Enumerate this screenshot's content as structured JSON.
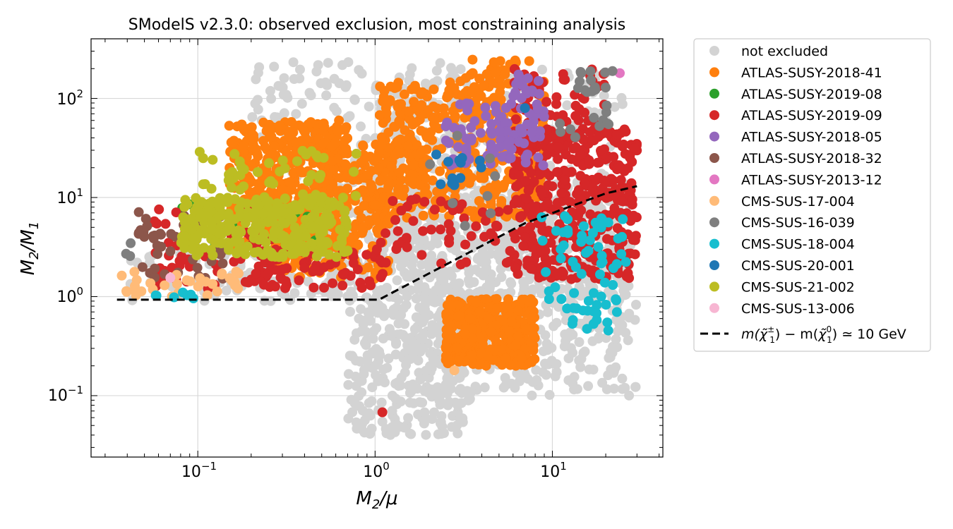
{
  "chart_data": {
    "type": "scatter",
    "title": "SModelS v2.3.0: observed exclusion, most constraining analysis",
    "xlabel": {
      "base": "M",
      "sub": "2",
      "tail": "/μ"
    },
    "ylabel": {
      "base": "M",
      "sub": "2",
      "tail": "/M",
      "sub2": "1"
    },
    "xscale": "log",
    "yscale": "log",
    "xlim": [
      0.025,
      42
    ],
    "ylim": [
      0.024,
      400
    ],
    "grid": true,
    "legend_position": "outside-right",
    "x_ticks": [
      {
        "value": 0.1,
        "base": "10",
        "exp": "−1"
      },
      {
        "value": 1,
        "base": "10",
        "exp": "0"
      },
      {
        "value": 10,
        "base": "10",
        "exp": "1"
      }
    ],
    "y_ticks": [
      {
        "value": 0.1,
        "base": "10",
        "exp": "−1"
      },
      {
        "value": 1,
        "base": "10",
        "exp": "0"
      },
      {
        "value": 10,
        "base": "10",
        "exp": "1"
      },
      {
        "value": 100,
        "base": "10",
        "exp": "2"
      }
    ],
    "series": [
      {
        "name": "not excluded",
        "color": "#d3d3d3",
        "regions": [
          {
            "x": [
              0.04,
              1.0
            ],
            "y": [
              0.9,
              3.0
            ],
            "n": 90
          },
          {
            "x": [
              0.5,
              28
            ],
            "y": [
              1.0,
              14
            ],
            "n": 500
          },
          {
            "x": [
              0.7,
              3.5
            ],
            "y": [
              0.04,
              1.0
            ],
            "n": 300
          },
          {
            "x": [
              1.0,
              25
            ],
            "y": [
              0.3,
              200
            ],
            "n": 400
          },
          {
            "x": [
              0.2,
              3.5
            ],
            "y": [
              12,
              240
            ],
            "n": 160
          },
          {
            "x": [
              2.0,
              30
            ],
            "y": [
              0.1,
              1.2
            ],
            "n": 200
          }
        ]
      },
      {
        "name": "ATLAS-SUSY-2018-41",
        "color": "#ff7f0e",
        "regions": [
          {
            "x": [
              0.15,
              0.7
            ],
            "y": [
              3.0,
              60
            ],
            "n": 450
          },
          {
            "x": [
              0.25,
              1.2
            ],
            "y": [
              1.5,
              12
            ],
            "n": 200
          },
          {
            "x": [
              1.0,
              9.0
            ],
            "y": [
              6,
              150
            ],
            "n": 400
          },
          {
            "x": [
              0.5,
              2.0
            ],
            "y": [
              8,
              40
            ],
            "n": 120
          },
          {
            "x": [
              2.5,
              8.0
            ],
            "y": [
              0.2,
              0.95
            ],
            "n": 380
          },
          {
            "x": [
              3.0,
              7.5
            ],
            "y": [
              100,
              250
            ],
            "n": 30
          }
        ]
      },
      {
        "name": "ATLAS-SUSY-2019-08",
        "color": "#2ca02c",
        "regions": [
          {
            "x": [
              0.075,
              0.18
            ],
            "y": [
              3.0,
              9.0
            ],
            "n": 12
          },
          {
            "x": [
              0.3,
              0.7
            ],
            "y": [
              3.0,
              8.0
            ],
            "n": 6
          }
        ]
      },
      {
        "name": "ATLAS-SUSY-2019-09",
        "color": "#d62728",
        "regions": [
          {
            "x": [
              0.055,
              0.3
            ],
            "y": [
              1.2,
              8.0
            ],
            "n": 70
          },
          {
            "x": [
              0.2,
              1.2
            ],
            "y": [
              1.2,
              3.0
            ],
            "n": 70
          },
          {
            "x": [
              6.0,
              30
            ],
            "y": [
              1.5,
              50
            ],
            "n": 400
          },
          {
            "x": [
              6.0,
              20
            ],
            "y": [
              30,
              200
            ],
            "n": 80
          },
          {
            "x": [
              1.0,
              8.0
            ],
            "y": [
              2.0,
              10
            ],
            "n": 60
          },
          {
            "x": [
              1.1,
              1.1
            ],
            "y": [
              0.068,
              0.068
            ],
            "n": 1
          }
        ]
      },
      {
        "name": "ATLAS-SUSY-2018-05",
        "color": "#9467bd",
        "regions": [
          {
            "x": [
              2.5,
              9.0
            ],
            "y": [
              20,
              90
            ],
            "n": 90
          },
          {
            "x": [
              5.5,
              8.5
            ],
            "y": [
              100,
              180
            ],
            "n": 15
          }
        ]
      },
      {
        "name": "ATLAS-SUSY-2018-32",
        "color": "#8c564b",
        "regions": [
          {
            "x": [
              0.045,
              0.15
            ],
            "y": [
              1.5,
              8.0
            ],
            "n": 50
          }
        ]
      },
      {
        "name": "ATLAS-SUSY-2013-12",
        "color": "#e377c2",
        "regions": [
          {
            "x": [
              24,
              24
            ],
            "y": [
              180,
              180
            ],
            "n": 1
          }
        ]
      },
      {
        "name": "CMS-SUS-17-004",
        "color": "#ffbb78",
        "regions": [
          {
            "x": [
              0.035,
              0.17
            ],
            "y": [
              1.0,
              1.8
            ],
            "n": 35
          },
          {
            "x": [
              2.8,
              2.8
            ],
            "y": [
              0.18,
              0.18
            ],
            "n": 1
          }
        ]
      },
      {
        "name": "CMS-SUS-16-039",
        "color": "#7f7f7f",
        "regions": [
          {
            "x": [
              10,
              22
            ],
            "y": [
              40,
              200
            ],
            "n": 25
          },
          {
            "x": [
              0.038,
              0.045
            ],
            "y": [
              2.5,
              3.5
            ],
            "n": 3
          },
          {
            "x": [
              2.0,
              6.0
            ],
            "y": [
              5.0,
              70
            ],
            "n": 8
          }
        ]
      },
      {
        "name": "CMS-SUS-18-004",
        "color": "#17becf",
        "regions": [
          {
            "x": [
              0.05,
              0.1
            ],
            "y": [
              0.95,
              1.1
            ],
            "n": 8
          },
          {
            "x": [
              8.5,
              26
            ],
            "y": [
              0.45,
              6.5
            ],
            "n": 70
          }
        ]
      },
      {
        "name": "CMS-SUS-20-001",
        "color": "#1f77b4",
        "regions": [
          {
            "x": [
              2.2,
              4.5
            ],
            "y": [
              12,
              30
            ],
            "n": 12
          },
          {
            "x": [
              7.0,
              7.0
            ],
            "y": [
              80,
              80
            ],
            "n": 1
          }
        ]
      },
      {
        "name": "CMS-SUS-21-002",
        "color": "#bcbd22",
        "regions": [
          {
            "x": [
              0.08,
              0.7
            ],
            "y": [
              2.5,
              10
            ],
            "n": 300
          },
          {
            "x": [
              0.1,
              0.8
            ],
            "y": [
              10,
              30
            ],
            "n": 45
          }
        ]
      },
      {
        "name": "CMS-SUS-13-006",
        "color": "#f7b6d2",
        "regions": [
          {
            "x": [
              0.07,
              0.07
            ],
            "y": [
              1.55,
              1.55
            ],
            "n": 1
          }
        ]
      }
    ],
    "reference_line": {
      "name": "m(χ̃±1) − m(χ̃01) ≃ 10 GeV",
      "label_parts": {
        "m_open": "m(",
        "chi_plus": "χ̃",
        "plus_sup": "±",
        "plus_sub": "1",
        "mid": ") − m(",
        "chi_zero": "χ̃",
        "zero_sup": "0",
        "zero_sub": "1",
        "tail": ") ≃ 10 GeV"
      },
      "color": "#000000",
      "style": "dashed",
      "x": [
        0.035,
        1.05,
        7.0,
        20,
        30
      ],
      "y": [
        0.93,
        0.93,
        5.5,
        11,
        13
      ]
    }
  }
}
